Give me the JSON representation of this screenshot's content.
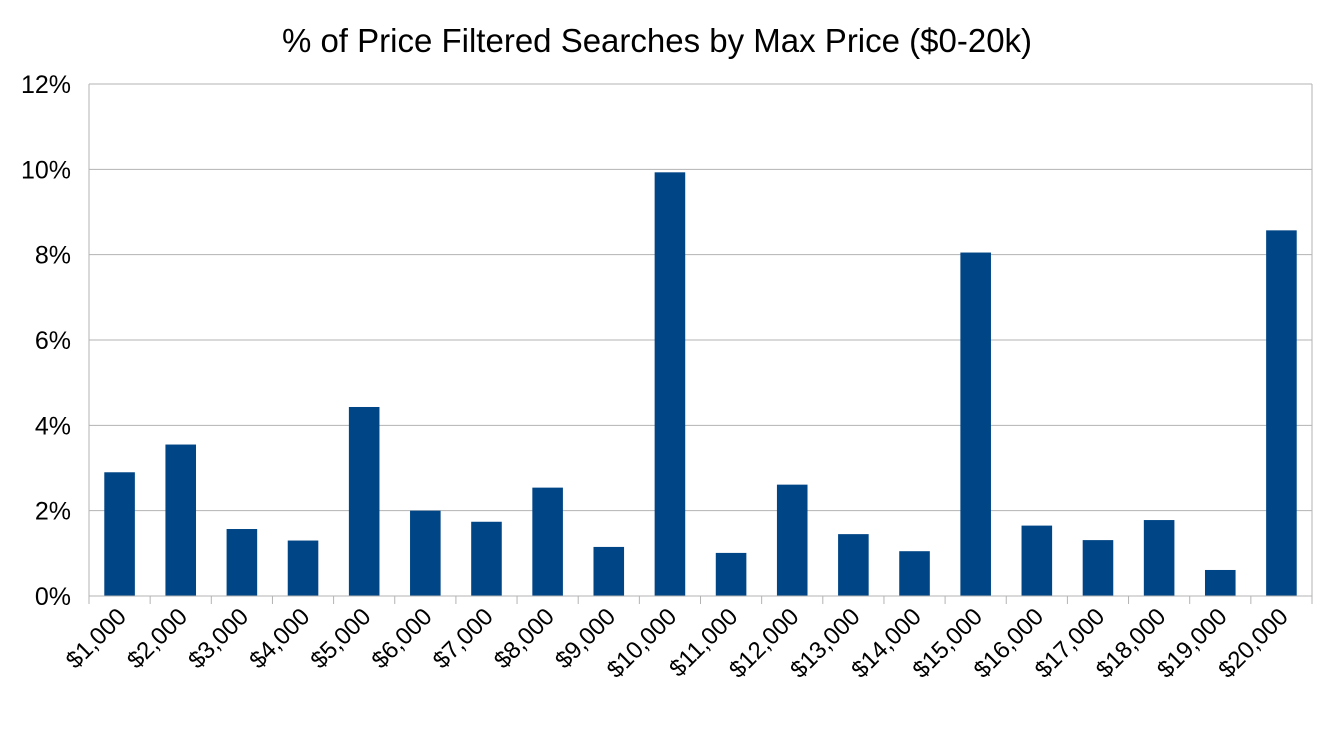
{
  "chart_data": {
    "type": "bar",
    "title": "% of Price Filtered Searches by Max Price ($0-20k)",
    "xlabel": "",
    "ylabel": "",
    "categories": [
      "$1,000",
      "$2,000",
      "$3,000",
      "$4,000",
      "$5,000",
      "$6,000",
      "$7,000",
      "$8,000",
      "$9,000",
      "$10,000",
      "$11,000",
      "$12,000",
      "$13,000",
      "$14,000",
      "$15,000",
      "$16,000",
      "$17,000",
      "$18,000",
      "$19,000",
      "$20,000"
    ],
    "values": [
      2.9,
      3.55,
      1.57,
      1.3,
      4.43,
      2.0,
      1.74,
      2.54,
      1.15,
      9.93,
      1.01,
      2.61,
      1.45,
      1.05,
      8.05,
      1.65,
      1.31,
      1.78,
      0.61,
      8.57
    ],
    "ylim": [
      0,
      12
    ],
    "yticks": [
      0,
      2,
      4,
      6,
      8,
      10,
      12
    ],
    "ytick_labels": [
      "0%",
      "2%",
      "4%",
      "6%",
      "8%",
      "10%",
      "12%"
    ],
    "grid": true,
    "legend": "none",
    "bar_color": "#004586",
    "grid_color": "#b3b3b3"
  }
}
